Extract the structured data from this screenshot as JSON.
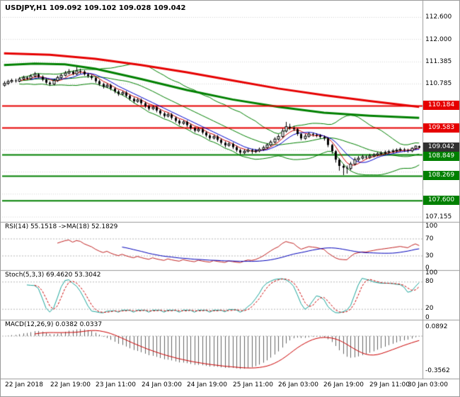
{
  "app": {
    "quote_line": "USDJPY,H1 109.092 109.102 109.028 109.042"
  },
  "chart_data": [
    {
      "type": "candlestick",
      "name": "USDJPY H1 main chart",
      "symbol": "USDJPY",
      "timeframe": "H1",
      "current_bar": {
        "open": "109.092",
        "high": "109.102",
        "low": "109.028",
        "close": "109.042"
      },
      "ylim": [
        107.1,
        112.9
      ],
      "grid_prices": [
        112.6,
        112.0,
        111.385,
        110.785,
        110.184,
        109.583,
        108.982,
        108.381,
        107.781,
        107.155
      ],
      "y_axis_labels": [
        "112.600",
        "112.000",
        "111.385",
        "110.785",
        "107.155"
      ],
      "x_labels": [
        "22 Jan 2018",
        "22 Jan 19:00",
        "23 Jan 11:00",
        "24 Jan 03:00",
        "24 Jan 19:00",
        "25 Jan 11:00",
        "26 Jan 03:00",
        "26 Jan 19:00",
        "29 Jan 11:00",
        "30 Jan 03:00"
      ],
      "levels": [
        {
          "price": 110.184,
          "label": "110.184",
          "color": "#e60000",
          "kind": "resistance"
        },
        {
          "price": 109.583,
          "label": "109.583",
          "color": "#e60000",
          "kind": "resistance"
        },
        {
          "price": 108.849,
          "label": "108.849",
          "color": "#008000",
          "kind": "support"
        },
        {
          "price": 108.269,
          "label": "108.269",
          "color": "#008000",
          "kind": "support"
        },
        {
          "price": 107.6,
          "label": "107.600",
          "color": "#008000",
          "kind": "support"
        }
      ],
      "current_badge": {
        "text": "109.042",
        "price": 109.042,
        "color": "#303030"
      },
      "overlays": {
        "bollinger": {
          "period": 20,
          "deviation": 2,
          "color": "#008000"
        },
        "fast_ma_red_period": 5,
        "fast_ma_blue_period": 8,
        "slow_ma_red": [
          [
            0,
            111.62
          ],
          [
            12,
            111.58
          ],
          [
            24,
            111.47
          ],
          [
            36,
            111.3
          ],
          [
            48,
            111.1
          ],
          [
            60,
            110.88
          ],
          [
            72,
            110.66
          ],
          [
            84,
            110.48
          ],
          [
            96,
            110.32
          ],
          [
            109,
            110.16
          ]
        ],
        "slow_ma_green": [
          [
            0,
            111.3
          ],
          [
            8,
            111.34
          ],
          [
            16,
            111.32
          ],
          [
            24,
            111.2
          ],
          [
            36,
            110.92
          ],
          [
            48,
            110.62
          ],
          [
            60,
            110.36
          ],
          [
            72,
            110.16
          ],
          [
            84,
            110.0
          ],
          [
            96,
            109.92
          ],
          [
            109,
            109.86
          ]
        ]
      },
      "candles_ohlc": [
        [
          110.75,
          110.86,
          110.71,
          110.8
        ],
        [
          110.8,
          110.9,
          110.76,
          110.85
        ],
        [
          110.85,
          110.93,
          110.81,
          110.88
        ],
        [
          110.88,
          110.93,
          110.82,
          110.86
        ],
        [
          110.86,
          110.97,
          110.83,
          110.92
        ],
        [
          110.92,
          111.01,
          110.89,
          110.96
        ],
        [
          110.96,
          111.0,
          110.89,
          110.93
        ],
        [
          110.93,
          111.05,
          110.9,
          111.0
        ],
        [
          111.0,
          111.11,
          110.96,
          111.05
        ],
        [
          111.05,
          111.08,
          110.94,
          110.98
        ],
        [
          110.98,
          111.02,
          110.86,
          110.9
        ],
        [
          110.9,
          110.94,
          110.78,
          110.82
        ],
        [
          110.82,
          110.86,
          110.73,
          110.78
        ],
        [
          110.78,
          110.93,
          110.75,
          110.88
        ],
        [
          110.88,
          111.01,
          110.84,
          110.96
        ],
        [
          110.96,
          111.07,
          110.92,
          111.02
        ],
        [
          111.02,
          111.14,
          110.99,
          111.08
        ],
        [
          111.08,
          111.19,
          111.04,
          111.12
        ],
        [
          111.12,
          111.16,
          111.02,
          111.06
        ],
        [
          111.06,
          111.25,
          111.02,
          111.14
        ],
        [
          111.14,
          111.2,
          111.06,
          111.12
        ],
        [
          111.12,
          111.16,
          111.01,
          111.05
        ],
        [
          111.05,
          111.09,
          110.95,
          111.0
        ],
        [
          111.0,
          111.04,
          110.9,
          110.95
        ],
        [
          110.95,
          110.99,
          110.81,
          110.86
        ],
        [
          110.86,
          110.9,
          110.73,
          110.78
        ],
        [
          110.78,
          110.82,
          110.66,
          110.71
        ],
        [
          110.71,
          110.8,
          110.67,
          110.75
        ],
        [
          110.75,
          110.79,
          110.61,
          110.66
        ],
        [
          110.66,
          110.7,
          110.53,
          110.58
        ],
        [
          110.58,
          110.62,
          110.46,
          110.51
        ],
        [
          110.51,
          110.6,
          110.47,
          110.55
        ],
        [
          110.55,
          110.59,
          110.41,
          110.46
        ],
        [
          110.46,
          110.5,
          110.33,
          110.38
        ],
        [
          110.38,
          110.42,
          110.26,
          110.31
        ],
        [
          110.31,
          110.4,
          110.27,
          110.35
        ],
        [
          110.35,
          110.39,
          110.21,
          110.26
        ],
        [
          110.26,
          110.3,
          110.13,
          110.18
        ],
        [
          110.18,
          110.22,
          110.06,
          110.11
        ],
        [
          110.11,
          110.2,
          110.07,
          110.15
        ],
        [
          110.15,
          110.19,
          110.01,
          110.06
        ],
        [
          110.06,
          110.1,
          109.93,
          109.98
        ],
        [
          109.98,
          110.02,
          109.86,
          109.91
        ],
        [
          109.91,
          110.0,
          109.87,
          109.95
        ],
        [
          109.95,
          109.99,
          109.81,
          109.86
        ],
        [
          109.86,
          109.9,
          109.73,
          109.78
        ],
        [
          109.78,
          109.82,
          109.66,
          109.71
        ],
        [
          109.71,
          109.8,
          109.67,
          109.75
        ],
        [
          109.75,
          109.79,
          109.61,
          109.66
        ],
        [
          109.66,
          109.7,
          109.53,
          109.58
        ],
        [
          109.58,
          109.62,
          109.46,
          109.51
        ],
        [
          109.51,
          109.6,
          109.47,
          109.55
        ],
        [
          109.55,
          109.59,
          109.41,
          109.46
        ],
        [
          109.46,
          109.5,
          109.33,
          109.38
        ],
        [
          109.38,
          109.42,
          109.26,
          109.31
        ],
        [
          109.31,
          109.4,
          109.27,
          109.35
        ],
        [
          109.35,
          109.39,
          109.21,
          109.26
        ],
        [
          109.26,
          109.3,
          109.13,
          109.18
        ],
        [
          109.18,
          109.22,
          109.05,
          109.11
        ],
        [
          109.11,
          109.2,
          109.07,
          109.15
        ],
        [
          109.15,
          109.19,
          109.01,
          109.06
        ],
        [
          109.06,
          109.1,
          108.93,
          108.98
        ],
        [
          108.98,
          109.02,
          108.86,
          108.91
        ],
        [
          108.91,
          109.0,
          108.87,
          108.95
        ],
        [
          108.95,
          109.03,
          108.91,
          108.98
        ],
        [
          108.98,
          109.02,
          108.88,
          108.94
        ],
        [
          108.94,
          109.01,
          108.9,
          108.96
        ],
        [
          108.96,
          109.05,
          108.92,
          109.0
        ],
        [
          109.0,
          109.1,
          108.96,
          109.05
        ],
        [
          109.05,
          109.17,
          109.01,
          109.12
        ],
        [
          109.12,
          109.25,
          109.08,
          109.2
        ],
        [
          109.2,
          109.33,
          109.16,
          109.28
        ],
        [
          109.28,
          109.41,
          109.24,
          109.35
        ],
        [
          109.35,
          109.57,
          109.31,
          109.5
        ],
        [
          109.5,
          109.75,
          109.46,
          109.62
        ],
        [
          109.62,
          109.7,
          109.53,
          109.58
        ],
        [
          109.58,
          109.64,
          109.5,
          109.55
        ],
        [
          109.55,
          109.58,
          109.37,
          109.42
        ],
        [
          109.42,
          109.46,
          109.25,
          109.3
        ],
        [
          109.3,
          109.42,
          109.26,
          109.36
        ],
        [
          109.36,
          109.47,
          109.32,
          109.42
        ],
        [
          109.42,
          109.46,
          109.35,
          109.4
        ],
        [
          109.4,
          109.44,
          109.33,
          109.38
        ],
        [
          109.38,
          109.42,
          109.29,
          109.34
        ],
        [
          109.34,
          109.38,
          109.24,
          109.3
        ],
        [
          109.3,
          109.33,
          109.06,
          109.12
        ],
        [
          109.12,
          109.15,
          108.88,
          108.95
        ],
        [
          108.95,
          108.98,
          108.64,
          108.72
        ],
        [
          108.72,
          108.76,
          108.42,
          108.55
        ],
        [
          108.55,
          108.6,
          108.3,
          108.5
        ],
        [
          108.5,
          108.56,
          108.34,
          108.48
        ],
        [
          108.48,
          108.66,
          108.43,
          108.6
        ],
        [
          108.6,
          108.78,
          108.56,
          108.72
        ],
        [
          108.72,
          108.82,
          108.67,
          108.76
        ],
        [
          108.76,
          108.86,
          108.72,
          108.8
        ],
        [
          108.8,
          108.84,
          108.73,
          108.78
        ],
        [
          108.78,
          108.88,
          108.74,
          108.82
        ],
        [
          108.82,
          108.9,
          108.78,
          108.85
        ],
        [
          108.85,
          108.93,
          108.81,
          108.88
        ],
        [
          108.88,
          108.95,
          108.84,
          108.9
        ],
        [
          108.9,
          108.97,
          108.86,
          108.92
        ],
        [
          108.92,
          108.99,
          108.88,
          108.94
        ],
        [
          108.94,
          109.01,
          108.9,
          108.96
        ],
        [
          108.96,
          109.03,
          108.92,
          108.98
        ],
        [
          108.98,
          109.05,
          108.94,
          109.0
        ],
        [
          109.0,
          109.04,
          108.93,
          108.98
        ],
        [
          108.98,
          109.02,
          108.91,
          108.96
        ],
        [
          108.96,
          109.06,
          108.92,
          109.03
        ],
        [
          109.03,
          109.11,
          108.99,
          109.09
        ],
        [
          109.092,
          109.102,
          109.028,
          109.042
        ]
      ]
    },
    {
      "type": "line",
      "name": "RSI",
      "label": "RSI(14) 55.1518 ->MA(18) 52.1829",
      "params": {
        "period": 14,
        "ma_period": 18
      },
      "last_values": {
        "rsi": "55.1518",
        "ma": "52.1829"
      },
      "ylim": [
        0,
        100
      ],
      "level_lines": [
        30,
        70
      ],
      "axis_labels": [
        "100",
        "70",
        "30",
        "0"
      ],
      "colors": {
        "main": "#c22222",
        "ma": "#0000bb"
      }
    },
    {
      "type": "line",
      "name": "Stochastic",
      "label": "Stoch(5,3,3) 69.4620 53.3042",
      "params": {
        "k": 5,
        "d": 3,
        "slowing": 3
      },
      "last_values": {
        "k": "69.4620",
        "d": "53.3042"
      },
      "ylim": [
        0,
        100
      ],
      "level_lines": [
        20,
        80
      ],
      "axis_labels": [
        "100",
        "80",
        "20",
        "0"
      ],
      "colors": {
        "main": "#1ca69c",
        "signal": "#cc0000"
      }
    },
    {
      "type": "bar",
      "name": "MACD",
      "label": "MACD(12,26,9) 0.0382 0.0337",
      "params": {
        "fast": 12,
        "slow": 26,
        "signal": 9
      },
      "last_values": {
        "macd": "0.0382",
        "signal": "0.0337"
      },
      "ylim": [
        -0.4,
        0.12
      ],
      "axis_labels": [
        "0.0892",
        "-0.3562"
      ],
      "colors": {
        "histogram": "#666666",
        "signal": "#cc0000"
      }
    }
  ]
}
